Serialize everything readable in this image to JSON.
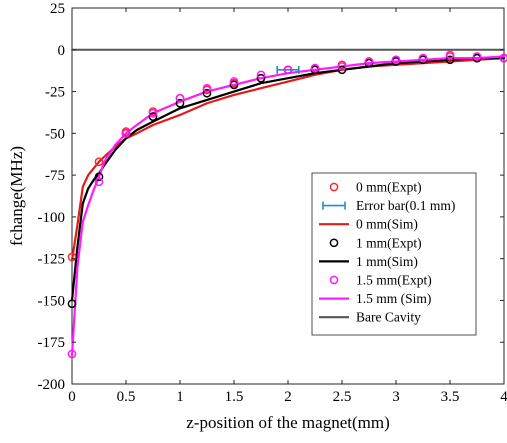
{
  "chart_data": {
    "type": "line",
    "title": "",
    "xlabel": "z-position of the magnet(mm)",
    "ylabel": "fchange(MHz)",
    "xlim": [
      0,
      4
    ],
    "ylim": [
      -200,
      25
    ],
    "xticks": [
      0,
      0.5,
      1,
      1.5,
      2,
      2.5,
      3,
      3.5,
      4
    ],
    "xtick_labels": [
      "0",
      "0.5",
      "1",
      "1.5",
      "2",
      "2.5",
      "3",
      "3.5",
      "4"
    ],
    "yticks": [
      25,
      0,
      -25,
      -50,
      -75,
      -100,
      -125,
      -150,
      -175,
      -200
    ],
    "ytick_labels": [
      "25",
      "0",
      "-25",
      "-50",
      "-75",
      "-100",
      "-125",
      "-150",
      "-175",
      "-200"
    ],
    "grid": false,
    "legend_position": "lower-right",
    "series": [
      {
        "name": "0 mm(Expt)",
        "kind": "marker",
        "color": "#ff2a2a",
        "x": [
          0,
          0.25,
          0.5,
          0.75,
          1,
          1.25,
          1.5,
          1.75,
          2,
          2.25,
          2.5,
          2.75,
          3,
          3.25,
          3.5,
          3.75,
          4
        ],
        "y": [
          -124,
          -67,
          -49,
          -37,
          -29,
          -24,
          -20,
          -17,
          -12,
          -11,
          -9,
          -7,
          -6,
          -5,
          -4,
          -5,
          -5
        ]
      },
      {
        "name": "Error bar(0.1 mm)",
        "kind": "errorbar",
        "color": "#1a8fd1",
        "x": [
          2
        ],
        "y": [
          -12
        ],
        "xerr": 0.1
      },
      {
        "name": "0 mm(Sim)",
        "kind": "line",
        "color": "#e31a1c",
        "x": [
          0,
          0.05,
          0.1,
          0.15,
          0.2,
          0.25,
          0.3,
          0.4,
          0.5,
          0.6,
          0.75,
          1,
          1.25,
          1.5,
          1.75,
          2,
          2.25,
          2.5,
          2.75,
          3,
          3.25,
          3.5,
          3.75,
          4
        ],
        "y": [
          -126,
          -105,
          -82,
          -75,
          -71,
          -67,
          -64,
          -58,
          -53,
          -50,
          -45,
          -39,
          -32,
          -27,
          -23,
          -19,
          -15,
          -12,
          -10,
          -9,
          -8,
          -7,
          -6,
          -5
        ]
      },
      {
        "name": "1 mm(Expt)",
        "kind": "marker",
        "color": "#000000",
        "x": [
          0,
          0.25,
          0.5,
          0.75,
          1,
          1.25,
          1.5,
          1.75,
          2,
          2.25,
          2.5,
          2.75,
          3,
          3.25,
          3.5,
          3.75,
          4
        ],
        "y": [
          -152,
          -76,
          -50,
          -40,
          -32,
          -26,
          -21,
          -17,
          -12,
          -12,
          -12,
          -8,
          -7,
          -6,
          -6,
          -5,
          -5
        ]
      },
      {
        "name": "1 mm(Sim)",
        "kind": "line",
        "color": "#000000",
        "x": [
          0,
          0.05,
          0.1,
          0.15,
          0.2,
          0.25,
          0.3,
          0.4,
          0.5,
          0.6,
          0.75,
          1,
          1.25,
          1.5,
          1.75,
          2,
          2.25,
          2.5,
          2.75,
          3,
          3.25,
          3.5,
          3.75,
          4
        ],
        "y": [
          -150,
          -118,
          -92,
          -83,
          -78,
          -74,
          -69,
          -60,
          -53,
          -48,
          -43,
          -35,
          -30,
          -25,
          -20,
          -17,
          -14,
          -12,
          -10,
          -8,
          -7,
          -6,
          -5,
          -5
        ]
      },
      {
        "name": "1.5 mm(Expt)",
        "kind": "marker",
        "color": "#ff1aff",
        "x": [
          0,
          0.25,
          0.5,
          0.75,
          1,
          1.25,
          1.5,
          1.75,
          2,
          2.25,
          2.5,
          2.75,
          3,
          3.25,
          3.5,
          3.75,
          4
        ],
        "y": [
          -182,
          -79,
          -50,
          -38,
          -29,
          -23,
          -19,
          -15,
          -12,
          -11,
          -10,
          -7,
          -6,
          -5,
          -3,
          -4,
          -5
        ]
      },
      {
        "name": "1.5 mm (Sim)",
        "kind": "line",
        "color": "#ff1aff",
        "x": [
          0,
          0.05,
          0.1,
          0.15,
          0.2,
          0.25,
          0.3,
          0.4,
          0.5,
          0.6,
          0.75,
          1,
          1.25,
          1.5,
          1.75,
          2,
          2.25,
          2.5,
          2.75,
          3,
          3.25,
          3.5,
          3.75,
          4
        ],
        "y": [
          -183,
          -130,
          -103,
          -93,
          -84,
          -76,
          -67,
          -57,
          -50,
          -45,
          -38,
          -31,
          -25,
          -21,
          -17,
          -14,
          -12,
          -10,
          -8,
          -7,
          -6,
          -5,
          -5,
          -4
        ]
      },
      {
        "name": "Bare Cavity",
        "kind": "line",
        "color": "#555555",
        "x": [
          0,
          4
        ],
        "y": [
          0,
          0
        ]
      }
    ]
  }
}
